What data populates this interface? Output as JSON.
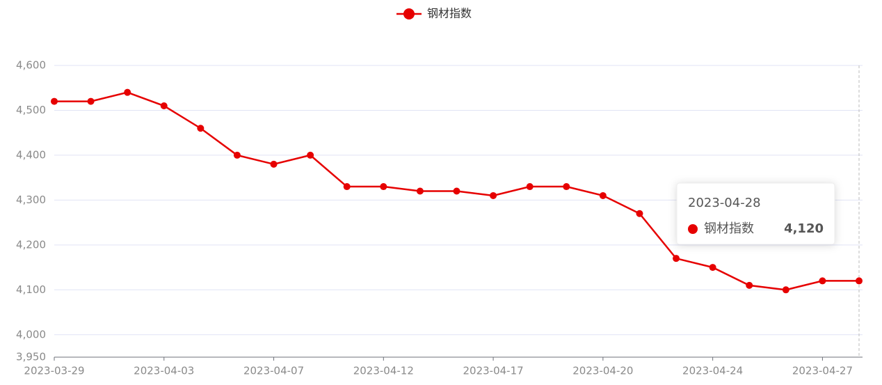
{
  "chart_data": {
    "type": "line",
    "categories": [
      "2023-03-29",
      null,
      null,
      "2023-04-03",
      null,
      null,
      "2023-04-07",
      null,
      null,
      "2023-04-12",
      null,
      null,
      "2023-04-17",
      null,
      null,
      "2023-04-20",
      null,
      null,
      "2023-04-24",
      null,
      null,
      "2023-04-27",
      "2023-04-28"
    ],
    "series": [
      {
        "name": "钢材指数",
        "color": "#e60000",
        "values": [
          4520,
          4520,
          4540,
          4510,
          4460,
          4400,
          4380,
          4400,
          4330,
          4330,
          4320,
          4320,
          4310,
          4330,
          4330,
          4310,
          4270,
          4170,
          4150,
          4110,
          4100,
          4120,
          4120
        ],
        "value_labels": [
          null,
          null,
          null,
          null,
          null,
          null,
          null,
          null,
          null,
          null,
          null,
          null,
          null,
          null,
          null,
          null,
          null,
          null,
          null,
          null,
          null,
          null,
          "4,120"
        ]
      }
    ],
    "ylim": [
      3950,
      4600
    ],
    "yticks": [
      {
        "value": 3950,
        "label": "3,950"
      },
      {
        "value": 4000,
        "label": "4,000"
      },
      {
        "value": 4100,
        "label": "4,100"
      },
      {
        "value": 4200,
        "label": "4,200"
      },
      {
        "value": 4300,
        "label": "4,300"
      },
      {
        "value": 4400,
        "label": "4,400"
      },
      {
        "value": 4500,
        "label": "4,500"
      },
      {
        "value": 4600,
        "label": "4,600"
      }
    ],
    "grid": true,
    "legend": "top"
  }
}
